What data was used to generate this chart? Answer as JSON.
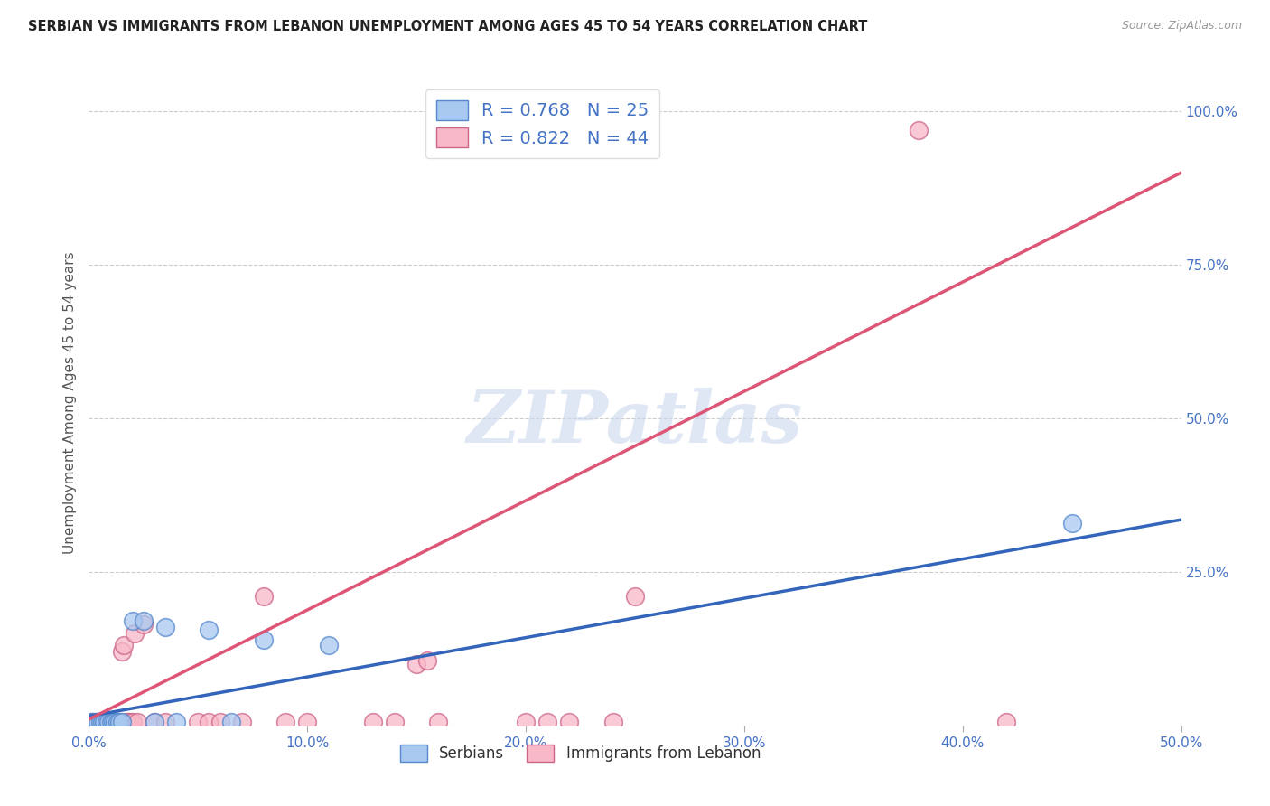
{
  "title": "SERBIAN VS IMMIGRANTS FROM LEBANON UNEMPLOYMENT AMONG AGES 45 TO 54 YEARS CORRELATION CHART",
  "source": "Source: ZipAtlas.com",
  "tick_color": "#4472c4",
  "ylabel": "Unemployment Among Ages 45 to 54 years",
  "xlim": [
    0.0,
    0.5
  ],
  "ylim": [
    0.0,
    1.05
  ],
  "x_ticks": [
    0.0,
    0.1,
    0.2,
    0.3,
    0.4,
    0.5
  ],
  "x_tick_labels": [
    "0.0%",
    "10.0%",
    "20.0%",
    "30.0%",
    "40.0%",
    "50.0%"
  ],
  "y_ticks": [
    0.0,
    0.25,
    0.5,
    0.75,
    1.0
  ],
  "y_tick_labels": [
    "",
    "25.0%",
    "50.0%",
    "75.0%",
    "100.0%"
  ],
  "serbian_color": "#a8c8f0",
  "serbian_edge_color": "#5588cc",
  "serbian_line_color": "#3366bb",
  "lebanon_color": "#f8b8c8",
  "lebanon_edge_color": "#cc6688",
  "lebanon_line_color": "#dd5577",
  "legend_serbian_label": "Serbians",
  "legend_lebanon_label": "Immigrants from Lebanon",
  "R_serbian": 0.768,
  "N_serbian": 25,
  "R_lebanon": 0.822,
  "N_lebanon": 44,
  "watermark": "ZIPatlas",
  "background_color": "#ffffff",
  "serbian_line_x": [
    0.0,
    0.5
  ],
  "serbian_line_y": [
    0.015,
    0.335
  ],
  "lebanon_line_x": [
    0.0,
    0.5
  ],
  "lebanon_line_y": [
    0.01,
    0.9
  ],
  "serbian_x": [
    0.001,
    0.002,
    0.003,
    0.004,
    0.005,
    0.006,
    0.007,
    0.008,
    0.009,
    0.01,
    0.011,
    0.012,
    0.013,
    0.014,
    0.015,
    0.02,
    0.025,
    0.03,
    0.035,
    0.055,
    0.065,
    0.08,
    0.11,
    0.45,
    0.04
  ],
  "serbian_y": [
    0.005,
    0.005,
    0.005,
    0.005,
    0.005,
    0.005,
    0.005,
    0.005,
    0.005,
    0.005,
    0.005,
    0.005,
    0.005,
    0.005,
    0.005,
    0.17,
    0.17,
    0.005,
    0.16,
    0.155,
    0.005,
    0.14,
    0.13,
    0.33,
    0.005
  ],
  "lebanon_x": [
    0.001,
    0.002,
    0.003,
    0.004,
    0.005,
    0.006,
    0.007,
    0.008,
    0.009,
    0.01,
    0.011,
    0.012,
    0.013,
    0.014,
    0.015,
    0.016,
    0.017,
    0.018,
    0.019,
    0.02,
    0.021,
    0.022,
    0.025,
    0.03,
    0.035,
    0.05,
    0.055,
    0.06,
    0.07,
    0.08,
    0.09,
    0.1,
    0.13,
    0.14,
    0.15,
    0.155,
    0.16,
    0.2,
    0.21,
    0.22,
    0.24,
    0.25,
    0.38,
    0.42
  ],
  "lebanon_y": [
    0.005,
    0.005,
    0.005,
    0.005,
    0.005,
    0.005,
    0.005,
    0.005,
    0.005,
    0.005,
    0.005,
    0.005,
    0.005,
    0.005,
    0.12,
    0.13,
    0.005,
    0.005,
    0.005,
    0.005,
    0.15,
    0.005,
    0.165,
    0.005,
    0.005,
    0.005,
    0.005,
    0.005,
    0.005,
    0.21,
    0.005,
    0.005,
    0.005,
    0.005,
    0.1,
    0.105,
    0.005,
    0.005,
    0.005,
    0.005,
    0.005,
    0.21,
    0.97,
    0.005
  ]
}
